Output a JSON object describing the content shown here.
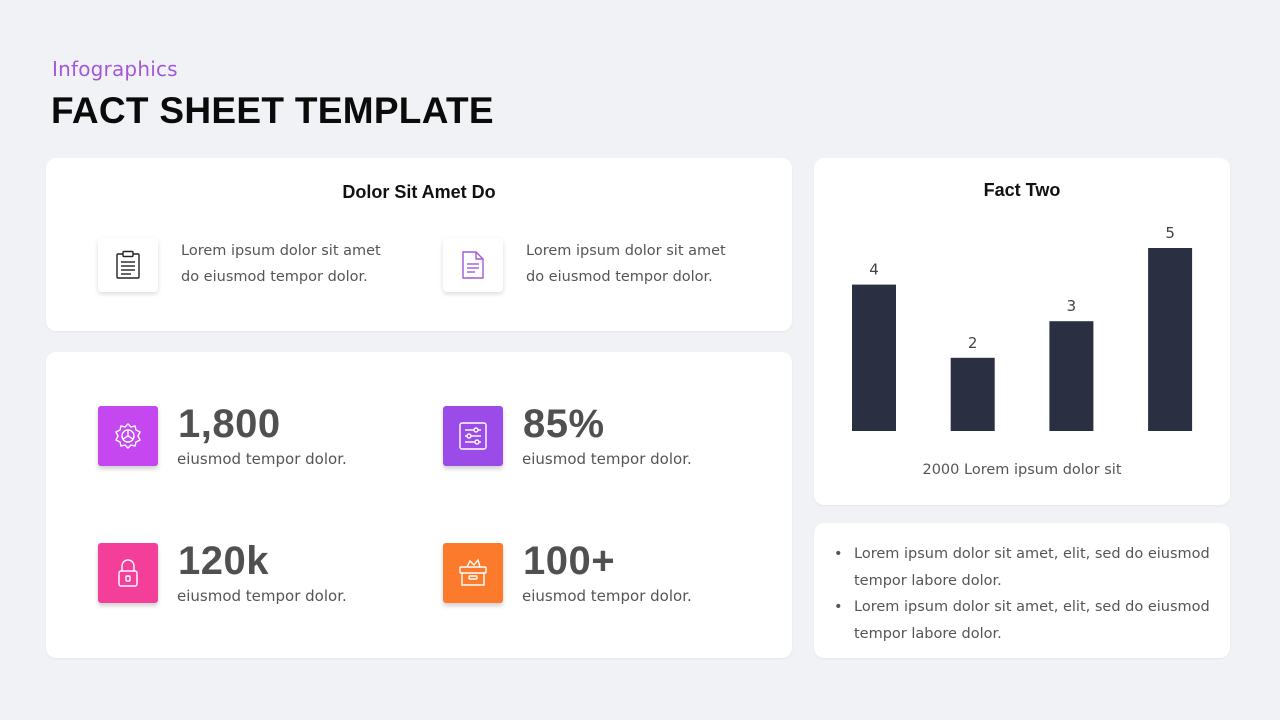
{
  "header": {
    "subtitle": "Infographics",
    "title": "FACT SHEET TEMPLATE"
  },
  "info_card": {
    "title": "Dolor Sit Amet Do",
    "items": [
      {
        "icon": "clipboard-icon",
        "line1": "Lorem ipsum dolor sit amet",
        "line2": "do eiusmod tempor dolor."
      },
      {
        "icon": "document-icon",
        "line1": "Lorem ipsum dolor sit amet",
        "line2": "do eiusmod tempor dolor."
      }
    ]
  },
  "stats": [
    {
      "value": "1,800",
      "label": "eiusmod tempor dolor.",
      "icon": "gear-icon",
      "color": "#c447ef"
    },
    {
      "value": "85%",
      "label": "eiusmod tempor dolor.",
      "icon": "sliders-icon",
      "color": "#9b4be8"
    },
    {
      "value": "120k",
      "label": "eiusmod tempor dolor.",
      "icon": "lock-icon",
      "color": "#f43f9a"
    },
    {
      "value": "100+",
      "label": "eiusmod tempor dolor.",
      "icon": "box-icon",
      "color": "#fb7a2b"
    }
  ],
  "chart_card": {
    "title": "Fact Two"
  },
  "chart_data": {
    "type": "bar",
    "title": "Fact Two",
    "categories": [
      "",
      "",
      "",
      ""
    ],
    "values": [
      4,
      2,
      3,
      5
    ],
    "data_labels": [
      "4",
      "2",
      "3",
      "5"
    ],
    "xlabel": "2000 Lorem ipsum dolor sit",
    "ylabel": "",
    "ylim": [
      0,
      5
    ],
    "bar_color": "#2a2f42",
    "grid": false,
    "legend": "none"
  },
  "bullets": [
    {
      "line1": "Lorem ipsum dolor sit amet, elit, sed do eiusmod",
      "line2": "tempor labore dolor."
    },
    {
      "line1": "Lorem ipsum dolor sit amet, elit, sed do eiusmod",
      "line2": "tempor labore dolor."
    }
  ]
}
